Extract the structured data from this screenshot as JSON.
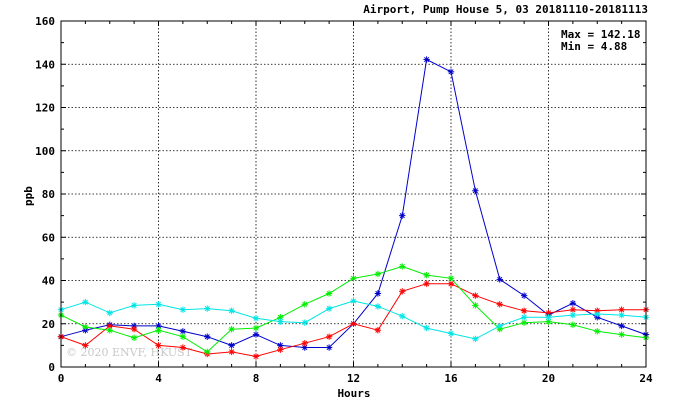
{
  "chart_data": {
    "type": "line",
    "title": "Airport, Pump House 5, 03 20181110-20181113",
    "xlabel": "Hours",
    "ylabel": "ppb",
    "xlim": [
      0,
      24
    ],
    "ylim": [
      0,
      160
    ],
    "xticks": [
      0,
      4,
      8,
      12,
      16,
      20,
      24
    ],
    "yticks": [
      0,
      20,
      40,
      60,
      80,
      100,
      120,
      140,
      160
    ],
    "grid": true,
    "stats": {
      "max_label": "Max = 142.18",
      "min_label": "Min =   4.88"
    },
    "watermark": "© 2020 ENVF, HKUST",
    "x": [
      0,
      1,
      2,
      3,
      4,
      5,
      6,
      7,
      8,
      9,
      10,
      11,
      12,
      13,
      14,
      15,
      16,
      17,
      18,
      19,
      20,
      21,
      22,
      23,
      24
    ],
    "series": [
      {
        "color": "#0000cc",
        "values": [
          14,
          17,
          19.5,
          19,
          19,
          16.5,
          14,
          10,
          15,
          10,
          9,
          9,
          20,
          34,
          70,
          142.18,
          136.5,
          81.5,
          40.5,
          33,
          24,
          29.5,
          23,
          19,
          15
        ]
      },
      {
        "color": "#ff0000",
        "values": [
          14,
          10,
          19,
          17.5,
          10,
          9,
          6,
          7,
          4.88,
          8,
          11,
          14,
          20,
          17,
          35,
          38.5,
          38.5,
          33,
          29,
          26,
          25,
          26.5,
          26,
          26.5,
          26.5
        ]
      },
      {
        "color": "#00ee00",
        "values": [
          24,
          18.5,
          17,
          13.5,
          17,
          14,
          7,
          17.5,
          18,
          23,
          29,
          34,
          41,
          43,
          46.5,
          42.5,
          41,
          28.5,
          17.5,
          20.5,
          21,
          19.5,
          16.5,
          15,
          13.5
        ]
      },
      {
        "color": "#00e5e5",
        "values": [
          26.5,
          30,
          25,
          28.5,
          29,
          26.5,
          27,
          26,
          22.5,
          21,
          20.5,
          27,
          30.5,
          28,
          23.5,
          18,
          15.5,
          13,
          19,
          23,
          23,
          24,
          24.5,
          24,
          23
        ]
      }
    ]
  }
}
